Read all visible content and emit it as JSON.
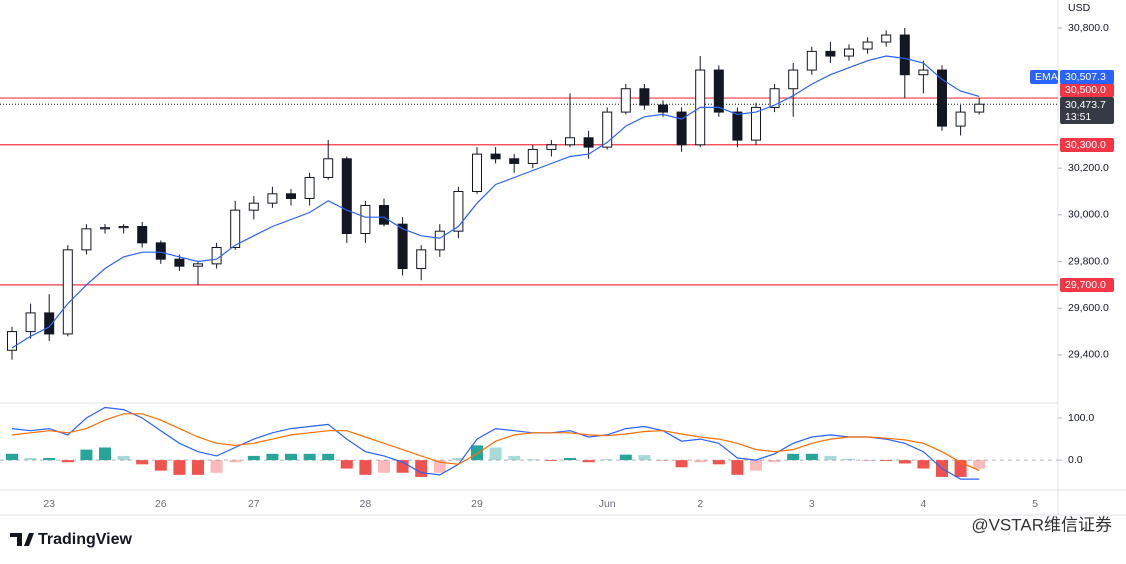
{
  "chart_data": {
    "type": "candlestick",
    "currency": "USD",
    "categories": [
      null,
      null,
      "23",
      null,
      null,
      null,
      null,
      null,
      "26",
      null,
      null,
      null,
      null,
      "27",
      null,
      null,
      null,
      null,
      null,
      "28",
      null,
      null,
      null,
      null,
      null,
      "29",
      null,
      null,
      null,
      null,
      null,
      null,
      "Jun",
      null,
      null,
      null,
      null,
      "2",
      null,
      null,
      null,
      null,
      null,
      "3",
      null,
      null,
      null,
      null,
      null,
      "4",
      null,
      null,
      null,
      null,
      null,
      "5"
    ],
    "open": [
      29420,
      29500,
      29580,
      29490,
      29850,
      29940,
      29945,
      29950,
      29880,
      29810,
      29780,
      29790,
      29860,
      30020,
      30050,
      30090,
      30070,
      30160,
      30240,
      29920,
      30040,
      29960,
      29770,
      29850,
      29930,
      30100,
      30260,
      30240,
      30220,
      30280,
      30300,
      30330,
      30290,
      30440,
      30540,
      30470,
      30440,
      30300,
      30620,
      30440,
      30320,
      30460,
      30540,
      30620,
      30700,
      30680,
      30710,
      30740,
      30770,
      30600,
      30620,
      30380,
      30440,
      null,
      null,
      null
    ],
    "high": [
      29520,
      29620,
      29660,
      29870,
      29960,
      29960,
      29960,
      29970,
      29890,
      29830,
      29800,
      29880,
      30060,
      30080,
      30120,
      30110,
      30180,
      30320,
      30250,
      30060,
      30070,
      29990,
      29870,
      29960,
      30120,
      30290,
      30290,
      30260,
      30300,
      30320,
      30520,
      30360,
      30460,
      30560,
      30560,
      30490,
      30460,
      30680,
      30640,
      30460,
      30480,
      30560,
      30650,
      30720,
      30740,
      30730,
      30760,
      30790,
      30800,
      30660,
      30640,
      30470,
      30500,
      null,
      null,
      null
    ],
    "low": [
      29380,
      29470,
      29460,
      29480,
      29830,
      29920,
      29920,
      29860,
      29790,
      29760,
      29700,
      29770,
      29850,
      29980,
      30030,
      30040,
      30040,
      30150,
      29880,
      29880,
      29950,
      29740,
      29720,
      29820,
      29900,
      30090,
      30220,
      30180,
      30200,
      30250,
      30290,
      30240,
      30280,
      30430,
      30450,
      30420,
      30270,
      30290,
      30420,
      30290,
      30300,
      30440,
      30420,
      30600,
      30650,
      30660,
      30690,
      30720,
      30500,
      30520,
      30360,
      30340,
      30430,
      null,
      null,
      null
    ],
    "close": [
      29500,
      29580,
      29490,
      29850,
      29940,
      29945,
      29950,
      29880,
      29810,
      29780,
      29790,
      29860,
      30020,
      30050,
      30090,
      30070,
      30160,
      30240,
      29920,
      30040,
      29960,
      29770,
      29850,
      29930,
      30100,
      30260,
      30240,
      30220,
      30280,
      30300,
      30330,
      30290,
      30440,
      30540,
      30470,
      30440,
      30300,
      30620,
      30440,
      30320,
      30460,
      30540,
      30620,
      30700,
      30680,
      30710,
      30740,
      30770,
      30600,
      30620,
      30380,
      30440,
      30473.7,
      null,
      null,
      null
    ],
    "up_color": "#ffffff",
    "down_color": "#131722",
    "ema": {
      "name": "EMA",
      "color": "#2962ff",
      "values": [
        29430,
        29480,
        29520,
        29620,
        29700,
        29770,
        29820,
        29840,
        29840,
        29820,
        29800,
        29810,
        29870,
        29910,
        29950,
        29980,
        30010,
        30060,
        30020,
        29990,
        29990,
        29940,
        29910,
        29900,
        29950,
        30050,
        30130,
        30160,
        30190,
        30220,
        30250,
        30260,
        30310,
        30380,
        30420,
        30430,
        30410,
        30460,
        30460,
        30430,
        30440,
        30470,
        30510,
        30560,
        30600,
        30630,
        30660,
        30680,
        30670,
        30650,
        30580,
        30530,
        30507.3,
        null,
        null,
        null
      ],
      "label": "30,507.3"
    },
    "ylim": [
      29207,
      30920
    ],
    "yticks": [
      {
        "value": 29400,
        "label": "29,400.0"
      },
      {
        "value": 29600,
        "label": "29,600.0"
      },
      {
        "value": 29800,
        "label": "29,800.0"
      },
      {
        "value": 30000,
        "label": "30,000.0"
      },
      {
        "value": 30200,
        "label": "30,200.0"
      },
      {
        "value": 30800,
        "label": "30,800.0"
      }
    ],
    "price_lines": [
      {
        "value": 30500,
        "label": "30,500.0",
        "color": "#f23645"
      },
      {
        "value": 30300,
        "label": "30,300.0",
        "color": "#f23645"
      },
      {
        "value": 29700,
        "label": "29,700.0",
        "color": "#f23645"
      }
    ],
    "last_price": {
      "value": 30473.7,
      "label": "30,473.7",
      "countdown": "13:51"
    },
    "macd": {
      "ylim": [
        -71,
        131
      ],
      "yticks": [
        {
          "value": 0,
          "label": "0.0"
        },
        {
          "value": 100,
          "label": "100.0"
        }
      ],
      "macd_color": "#2962ff",
      "signal_color": "#ff6d00",
      "positive_color": "#26a69a",
      "negative_color": "#ef5350",
      "macd": [
        75,
        70,
        75,
        60,
        100,
        125,
        120,
        100,
        70,
        40,
        20,
        10,
        30,
        50,
        65,
        75,
        80,
        85,
        50,
        20,
        10,
        -5,
        -30,
        -35,
        -10,
        50,
        75,
        70,
        65,
        65,
        70,
        55,
        60,
        75,
        80,
        70,
        45,
        50,
        40,
        5,
        0,
        15,
        40,
        55,
        60,
        55,
        55,
        50,
        40,
        20,
        -20,
        -45,
        -45,
        null,
        null,
        null
      ],
      "signal": [
        60,
        65,
        70,
        65,
        75,
        95,
        110,
        110,
        95,
        75,
        55,
        40,
        35,
        40,
        50,
        60,
        65,
        70,
        70,
        55,
        40,
        25,
        10,
        -5,
        -10,
        15,
        45,
        60,
        65,
        65,
        65,
        60,
        58,
        62,
        68,
        70,
        62,
        55,
        50,
        40,
        25,
        20,
        25,
        40,
        50,
        55,
        55,
        52,
        48,
        40,
        20,
        -5,
        -25,
        null,
        null,
        null
      ],
      "histogram": [
        15,
        5,
        5,
        -5,
        25,
        30,
        10,
        -10,
        -25,
        -35,
        -35,
        -30,
        -5,
        10,
        15,
        15,
        15,
        15,
        -20,
        -35,
        -30,
        -30,
        -40,
        -30,
        5,
        35,
        30,
        10,
        2,
        -2,
        5,
        -5,
        2,
        13,
        12,
        -2,
        -17,
        -5,
        -10,
        -35,
        -25,
        -5,
        15,
        15,
        10,
        3,
        -2,
        -2,
        -8,
        -20,
        -40,
        -40,
        -20,
        null,
        null,
        null
      ]
    }
  },
  "branding": {
    "logo": "TradingView",
    "watermark": "@VSTAR维信证券"
  }
}
